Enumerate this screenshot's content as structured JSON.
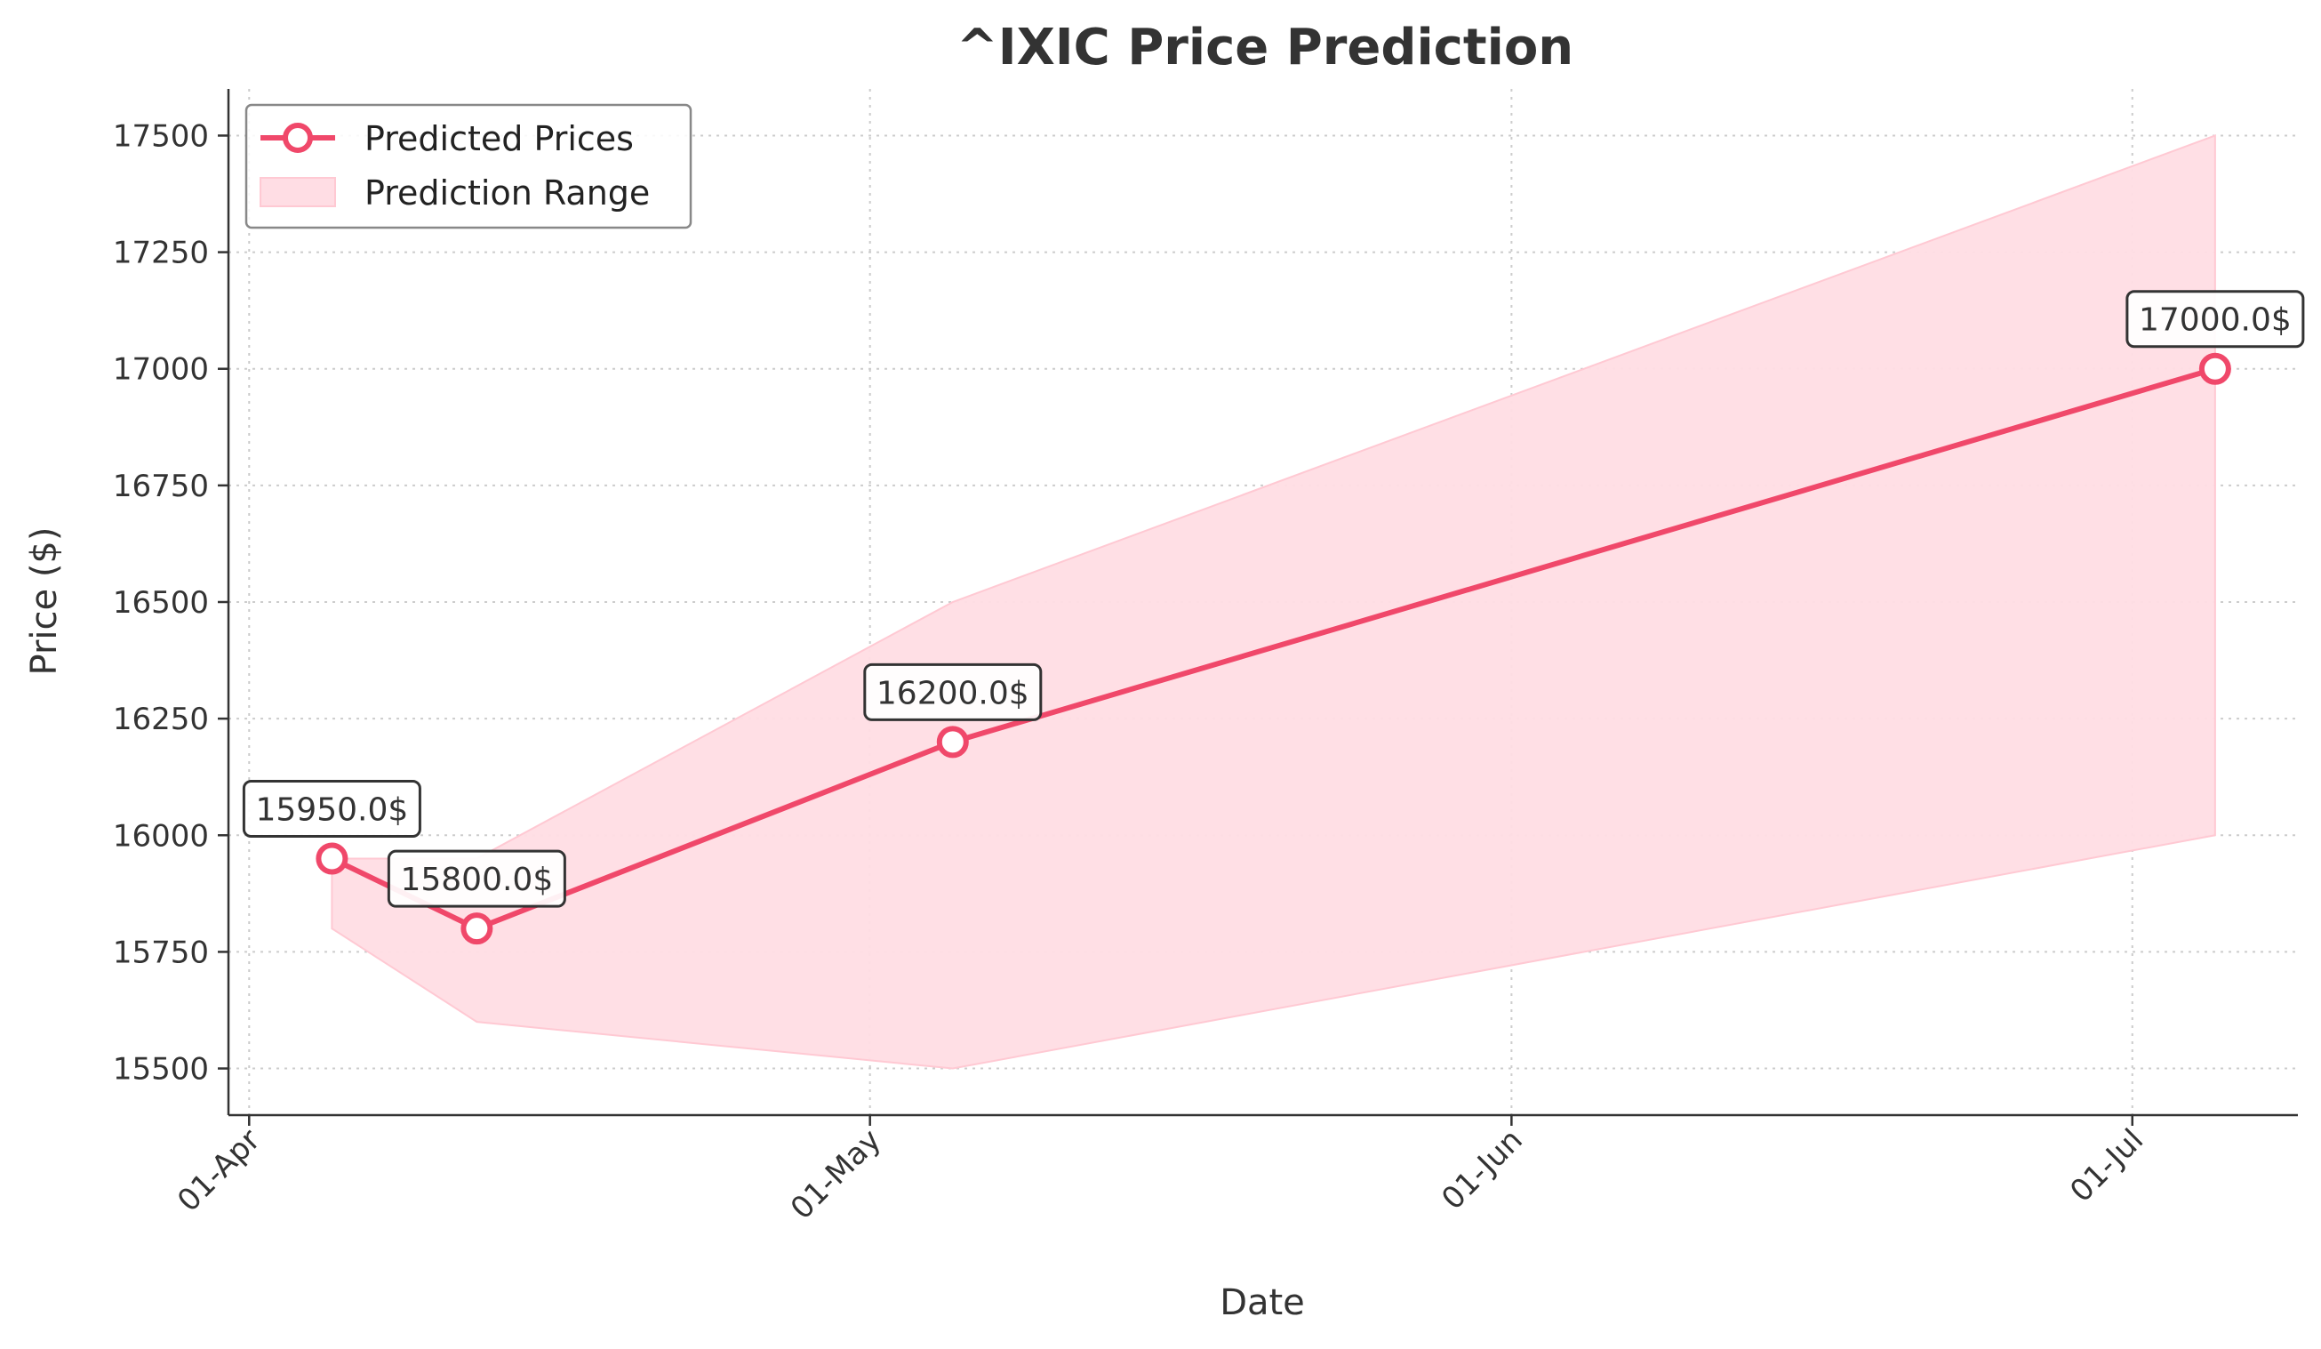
{
  "chart_data": {
    "type": "line",
    "title": "^IXIC Price Prediction",
    "xlabel": "Date",
    "ylabel": "Price ($)",
    "x_tick_labels": [
      "01-Apr",
      "01-May",
      "01-Jun",
      "01-Jul"
    ],
    "x_ticks": [
      "2024-04-01",
      "2024-05-01",
      "2024-06-01",
      "2024-07-01"
    ],
    "xlim": [
      "2024-03-31",
      "2024-07-09"
    ],
    "ylim": [
      15400,
      17600
    ],
    "y_ticks": [
      15500,
      15750,
      16000,
      16250,
      16500,
      16750,
      17000,
      17250,
      17500
    ],
    "y_tick_labels": [
      "15500",
      "15750",
      "16000",
      "16250",
      "16500",
      "16750",
      "17000",
      "17250",
      "17500"
    ],
    "grid": true,
    "legend_position": "top-left",
    "series": [
      {
        "name": "Predicted Prices",
        "color": "#f0486a",
        "x": [
          "2024-04-05",
          "2024-04-12",
          "2024-05-05",
          "2024-07-05"
        ],
        "values": [
          15950,
          15800,
          16200,
          17000
        ]
      }
    ],
    "range": {
      "name": "Prediction Range",
      "color": "#ffdde4",
      "x": [
        "2024-04-05",
        "2024-04-12",
        "2024-05-05",
        "2024-07-05"
      ],
      "lower": [
        15800,
        15600,
        15500,
        16000
      ],
      "upper": [
        15950,
        15950,
        16500,
        17500
      ]
    },
    "annotations": [
      "15950.0$",
      "15800.0$",
      "16200.0$",
      "17000.0$"
    ]
  }
}
